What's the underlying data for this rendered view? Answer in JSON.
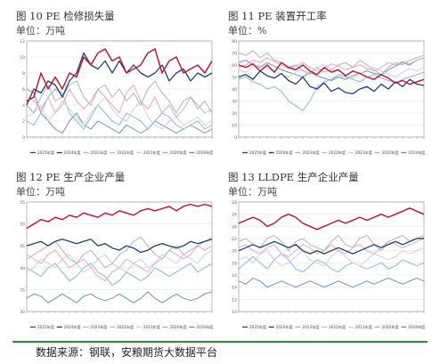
{
  "colors": {
    "2025": "#c0102a",
    "2024": "#1f3f7a",
    "2023": "#b4b4b4",
    "2022": "#e8a8b8",
    "2021": "#d0d0d0",
    "2020": "#8db3e0",
    "2019": "#6e8fbf",
    "grid": "#e6e6e6",
    "frame": "#8a8a8a",
    "footer_line": "#2e8b3a"
  },
  "footer": {
    "source": "数据来源：钢联，安粮期货大数据平台"
  },
  "panels": [
    {
      "title": "图 10 PE 检修损失量",
      "unit": "单位：万吨",
      "chart_data": {
        "type": "line",
        "y_ticks": [
          "0",
          "2",
          "4",
          "6",
          "8",
          "10",
          "12"
        ],
        "ylim": [
          0,
          12
        ],
        "legend": [
          "2025年度",
          "2024年度",
          "2023年度",
          "2022年度",
          "2021年度",
          "2020年度",
          "2019年度"
        ],
        "legend_position": "bottom",
        "series": [
          {
            "name": "2025年度",
            "values": [
              4.5,
              5,
              8,
              6,
              7.5,
              6,
              8,
              7.5,
              10,
              9,
              10.5,
              11,
              9.5,
              10,
              8,
              8.5,
              9,
              10.5,
              11,
              8,
              9.5,
              10,
              8,
              8.5,
              9,
              8,
              9.5
            ]
          },
          {
            "name": "2024年度",
            "values": [
              4,
              6,
              5.5,
              7,
              6.5,
              5,
              7,
              8,
              10.5,
              9,
              8.5,
              9.5,
              8,
              9.5,
              8,
              9,
              8,
              7.5,
              8,
              9,
              7,
              8,
              8.5,
              7,
              8,
              7.5,
              8
            ]
          },
          {
            "name": "2023年度",
            "values": [
              4,
              3,
              5,
              6.5,
              4.5,
              5,
              6.5,
              7,
              5,
              4,
              6,
              6.5,
              5,
              6,
              4.5,
              5.5,
              4,
              6,
              7,
              5.5,
              4.5,
              3,
              4.5,
              5,
              3.5,
              4.5,
              3
            ]
          },
          {
            "name": "2022年度",
            "values": [
              5,
              4.5,
              3.5,
              5,
              3,
              4,
              6,
              4.5,
              3.5,
              4.5,
              6,
              5,
              4,
              3,
              5.5,
              6.5,
              4.5,
              3.5,
              5,
              3,
              4,
              2.5,
              3.5,
              5,
              4,
              3,
              3.5
            ]
          },
          {
            "name": "2021年度",
            "values": [
              2.5,
              3,
              4,
              2,
              3,
              4.5,
              3.5,
              2.5,
              1.5,
              3,
              4,
              5,
              3.5,
              2.5,
              2,
              3.5,
              4.5,
              2.5,
              1.5,
              1,
              2,
              2.5,
              1.5,
              2,
              2.5,
              1.5,
              2
            ]
          },
          {
            "name": "2020年度",
            "values": [
              2,
              1.5,
              3,
              5,
              6,
              5.5,
              3,
              2,
              1,
              2.5,
              4,
              3,
              2,
              1.5,
              3,
              2.5,
              2,
              1,
              2,
              3,
              2.5,
              1.5,
              1,
              1.5,
              2,
              1,
              1.5
            ]
          },
          {
            "name": "2019年度",
            "values": [
              6,
              5.5,
              3,
              2,
              1,
              0.5,
              2,
              3,
              1.5,
              1,
              2,
              1.5,
              1,
              0.5,
              1.5,
              1,
              0.5,
              1,
              2,
              1.5,
              1,
              0.5,
              1,
              1.5,
              1,
              0.5,
              1
            ]
          }
        ]
      }
    },
    {
      "title": "图 11 PE 装置开工率",
      "unit": "单位：%",
      "chart_data": {
        "type": "line",
        "y_ticks": [
          "0",
          "10",
          "20",
          "30",
          "40",
          "50",
          "60",
          "70",
          "80"
        ],
        "ylim": [
          0,
          80
        ],
        "legend": [
          "2025年度",
          "2024年度",
          "2023年度",
          "2022年度",
          "2021年度",
          "2020年度",
          "2019年度"
        ],
        "legend_position": "bottom",
        "series": [
          {
            "name": "2025年度",
            "values": [
              60,
              58,
              61,
              55,
              60,
              54,
              62,
              58,
              56,
              60,
              55,
              52,
              58,
              54,
              56,
              51,
              55,
              53,
              50,
              48,
              52,
              49,
              45,
              47,
              44,
              46,
              48
            ]
          },
          {
            "name": "2024年度",
            "values": [
              50,
              52,
              48,
              55,
              51,
              49,
              53,
              47,
              44,
              50,
              42,
              40,
              45,
              38,
              41,
              37,
              36,
              40,
              42,
              38,
              44,
              40,
              46,
              42,
              48,
              44,
              43
            ]
          },
          {
            "name": "2023年度",
            "values": [
              70,
              68,
              72,
              66,
              70,
              64,
              62,
              58,
              60,
              55,
              52,
              58,
              54,
              56,
              60,
              62,
              58,
              64,
              60,
              56,
              52,
              58,
              62,
              60,
              64,
              66,
              68
            ]
          },
          {
            "name": "2022年度",
            "values": [
              58,
              60,
              64,
              62,
              66,
              63,
              60,
              57,
              59,
              62,
              58,
              55,
              57,
              61,
              59,
              56,
              58,
              60,
              57,
              55,
              58,
              62,
              60,
              63,
              61,
              64,
              66
            ]
          },
          {
            "name": "2021年度",
            "values": [
              56,
              54,
              58,
              60,
              57,
              55,
              52,
              50,
              54,
              56,
              53,
              58,
              60,
              57,
              55,
              52,
              49,
              53,
              56,
              58,
              55,
              52,
              50,
              54,
              57,
              55,
              58
            ]
          },
          {
            "name": "2020年度",
            "values": [
              48,
              50,
              46,
              44,
              40,
              42,
              38,
              30,
              26,
              22,
              30,
              42,
              46,
              48,
              52,
              50,
              48,
              46,
              50,
              52,
              49,
              47,
              45,
              48,
              50,
              52,
              54
            ]
          },
          {
            "name": "2019年度",
            "values": [
              62,
              64,
              60,
              58,
              62,
              59,
              56,
              54,
              52,
              50,
              54,
              51,
              49,
              47,
              50,
              48,
              51,
              53,
              55,
              53,
              52,
              56,
              59,
              62,
              60,
              64,
              66
            ]
          }
        ]
      }
    },
    {
      "title": "图 12 PE 生产企业产量",
      "unit": "单位：万吨",
      "chart_data": {
        "type": "line",
        "y_ticks": [
          "30",
          "35",
          "40",
          "45",
          "50",
          "55"
        ],
        "ylim": [
          30,
          55
        ],
        "legend": [
          "2025年度",
          "2024年度",
          "2023年度",
          "2022年度",
          "2021年度",
          "2020年度",
          "2019年度"
        ],
        "legend_position": "bottom",
        "series": [
          {
            "name": "2025年度",
            "values": [
              49,
              50,
              51,
              50.5,
              51.5,
              51,
              52,
              51.5,
              52.5,
              52,
              51.5,
              52.5,
              52,
              53,
              52.5,
              52,
              53,
              53.5,
              53,
              53.5,
              54,
              53,
              54,
              54.5,
              54,
              54.5,
              54
            ]
          },
          {
            "name": "2024年度",
            "values": [
              45,
              45.5,
              46,
              45,
              46,
              46.5,
              46,
              45.5,
              46,
              46.5,
              45,
              45.5,
              44.5,
              44,
              45,
              44.5,
              43.5,
              44,
              45,
              45.5,
              45,
              44.5,
              45,
              46,
              45.5,
              46,
              46.5
            ]
          },
          {
            "name": "2023年度",
            "values": [
              42,
              43,
              44,
              45,
              46,
              44,
              42,
              41,
              43,
              44,
              42,
              40,
              41,
              43,
              44,
              46,
              47,
              45,
              43,
              42,
              44,
              45,
              43,
              44,
              45,
              46,
              47
            ]
          },
          {
            "name": "2022年度",
            "values": [
              43,
              42,
              41,
              43,
              44,
              42,
              40,
              41,
              42,
              40,
              38,
              37,
              39,
              40,
              42,
              41,
              40,
              39,
              41,
              42,
              44,
              43,
              42,
              43,
              45,
              44,
              45
            ]
          },
          {
            "name": "2021年度",
            "values": [
              39,
              40,
              42,
              41,
              40,
              42,
              43,
              41,
              39,
              40,
              42,
              43,
              41,
              40,
              39,
              41,
              42,
              40,
              41,
              43,
              42,
              41,
              43,
              42,
              41,
              43,
              44
            ]
          },
          {
            "name": "2020年度",
            "values": [
              40,
              39,
              38,
              40,
              41,
              39,
              37,
              38,
              40,
              41,
              39,
              38,
              36,
              37,
              39,
              38,
              37,
              38,
              40,
              39,
              38,
              39,
              40,
              41,
              39,
              40,
              41
            ]
          },
          {
            "name": "2019年度",
            "values": [
              33,
              34,
              33.5,
              32,
              33,
              34,
              33,
              32,
              33.5,
              34,
              33,
              32.5,
              33,
              34,
              33,
              32,
              33,
              34.5,
              33,
              32,
              33,
              34,
              33,
              32.5,
              33,
              34,
              34.5
            ]
          }
        ]
      }
    },
    {
      "title": "图 13 LLDPE 生产企业产量",
      "unit": "单位：万吨",
      "chart_data": {
        "type": "line",
        "y_ticks": [
          "10",
          "12",
          "14",
          "16",
          "18",
          "20",
          "22",
          "24",
          "26",
          "28"
        ],
        "ylim": [
          10,
          28
        ],
        "legend": [
          "2025年度",
          "2024年度",
          "2023年度",
          "2022年度",
          "2021年度",
          "2020年度",
          "2019年度"
        ],
        "legend_position": "bottom",
        "series": [
          {
            "name": "2025年度",
            "values": [
              24.5,
              25,
              25.5,
              25,
              24,
              24.5,
              25.5,
              26,
              25.5,
              24.5,
              24,
              23.5,
              24,
              24.5,
              25,
              24.5,
              25,
              25.5,
              25,
              25.5,
              26,
              25.5,
              26,
              26.5,
              27,
              26.5,
              26
            ]
          },
          {
            "name": "2024年度",
            "values": [
              20,
              20.5,
              21,
              20.5,
              21,
              21.5,
              21,
              20.5,
              21,
              20,
              19.5,
              20,
              19.5,
              20,
              20.5,
              20,
              19.5,
              20,
              20.5,
              21,
              20.5,
              21,
              21.5,
              21,
              21.5,
              22,
              22
            ]
          },
          {
            "name": "2023年度",
            "values": [
              21.5,
              22,
              21,
              20.5,
              22,
              22.5,
              21.5,
              20,
              21.5,
              22,
              21,
              20.5,
              20,
              21.5,
              22.5,
              21,
              20.5,
              22,
              22.5,
              21,
              20,
              21.5,
              22,
              22.5,
              21.5,
              22,
              22.5
            ]
          },
          {
            "name": "2022年度",
            "values": [
              20.5,
              21,
              20,
              19.5,
              20.5,
              21,
              19.5,
              19,
              20,
              21,
              20.5,
              19.5,
              20,
              21,
              20,
              19.5,
              20.5,
              21,
              20,
              19.5,
              20.5,
              21.5,
              21,
              20.5,
              21,
              21.5,
              22
            ]
          },
          {
            "name": "2021年度",
            "values": [
              18.5,
              19,
              18,
              19.5,
              20,
              18.5,
              17.5,
              18,
              19,
              20,
              18.5,
              18,
              17.5,
              19,
              20,
              19,
              18,
              17.5,
              18.5,
              19.5,
              19,
              18.5,
              19,
              20,
              19.5,
              20,
              20.5
            ]
          },
          {
            "name": "2020年度",
            "values": [
              17,
              18,
              19,
              18,
              17,
              18.5,
              19.5,
              18.5,
              17,
              16.5,
              17.5,
              18.5,
              18,
              17,
              16.5,
              17.5,
              18,
              17.5,
              17,
              17.5,
              18,
              17,
              17.5,
              18.5,
              18,
              17.5,
              18
            ]
          },
          {
            "name": "2019年度",
            "values": [
              15,
              14.5,
              15.5,
              15,
              14,
              14.5,
              15,
              14.5,
              14,
              14.5,
              15,
              14.5,
              14,
              14.5,
              15,
              14.5,
              14,
              14.5,
              15,
              14.5,
              15,
              15.5,
              15,
              14.5,
              15,
              15.5,
              15
            ]
          }
        ]
      }
    }
  ]
}
